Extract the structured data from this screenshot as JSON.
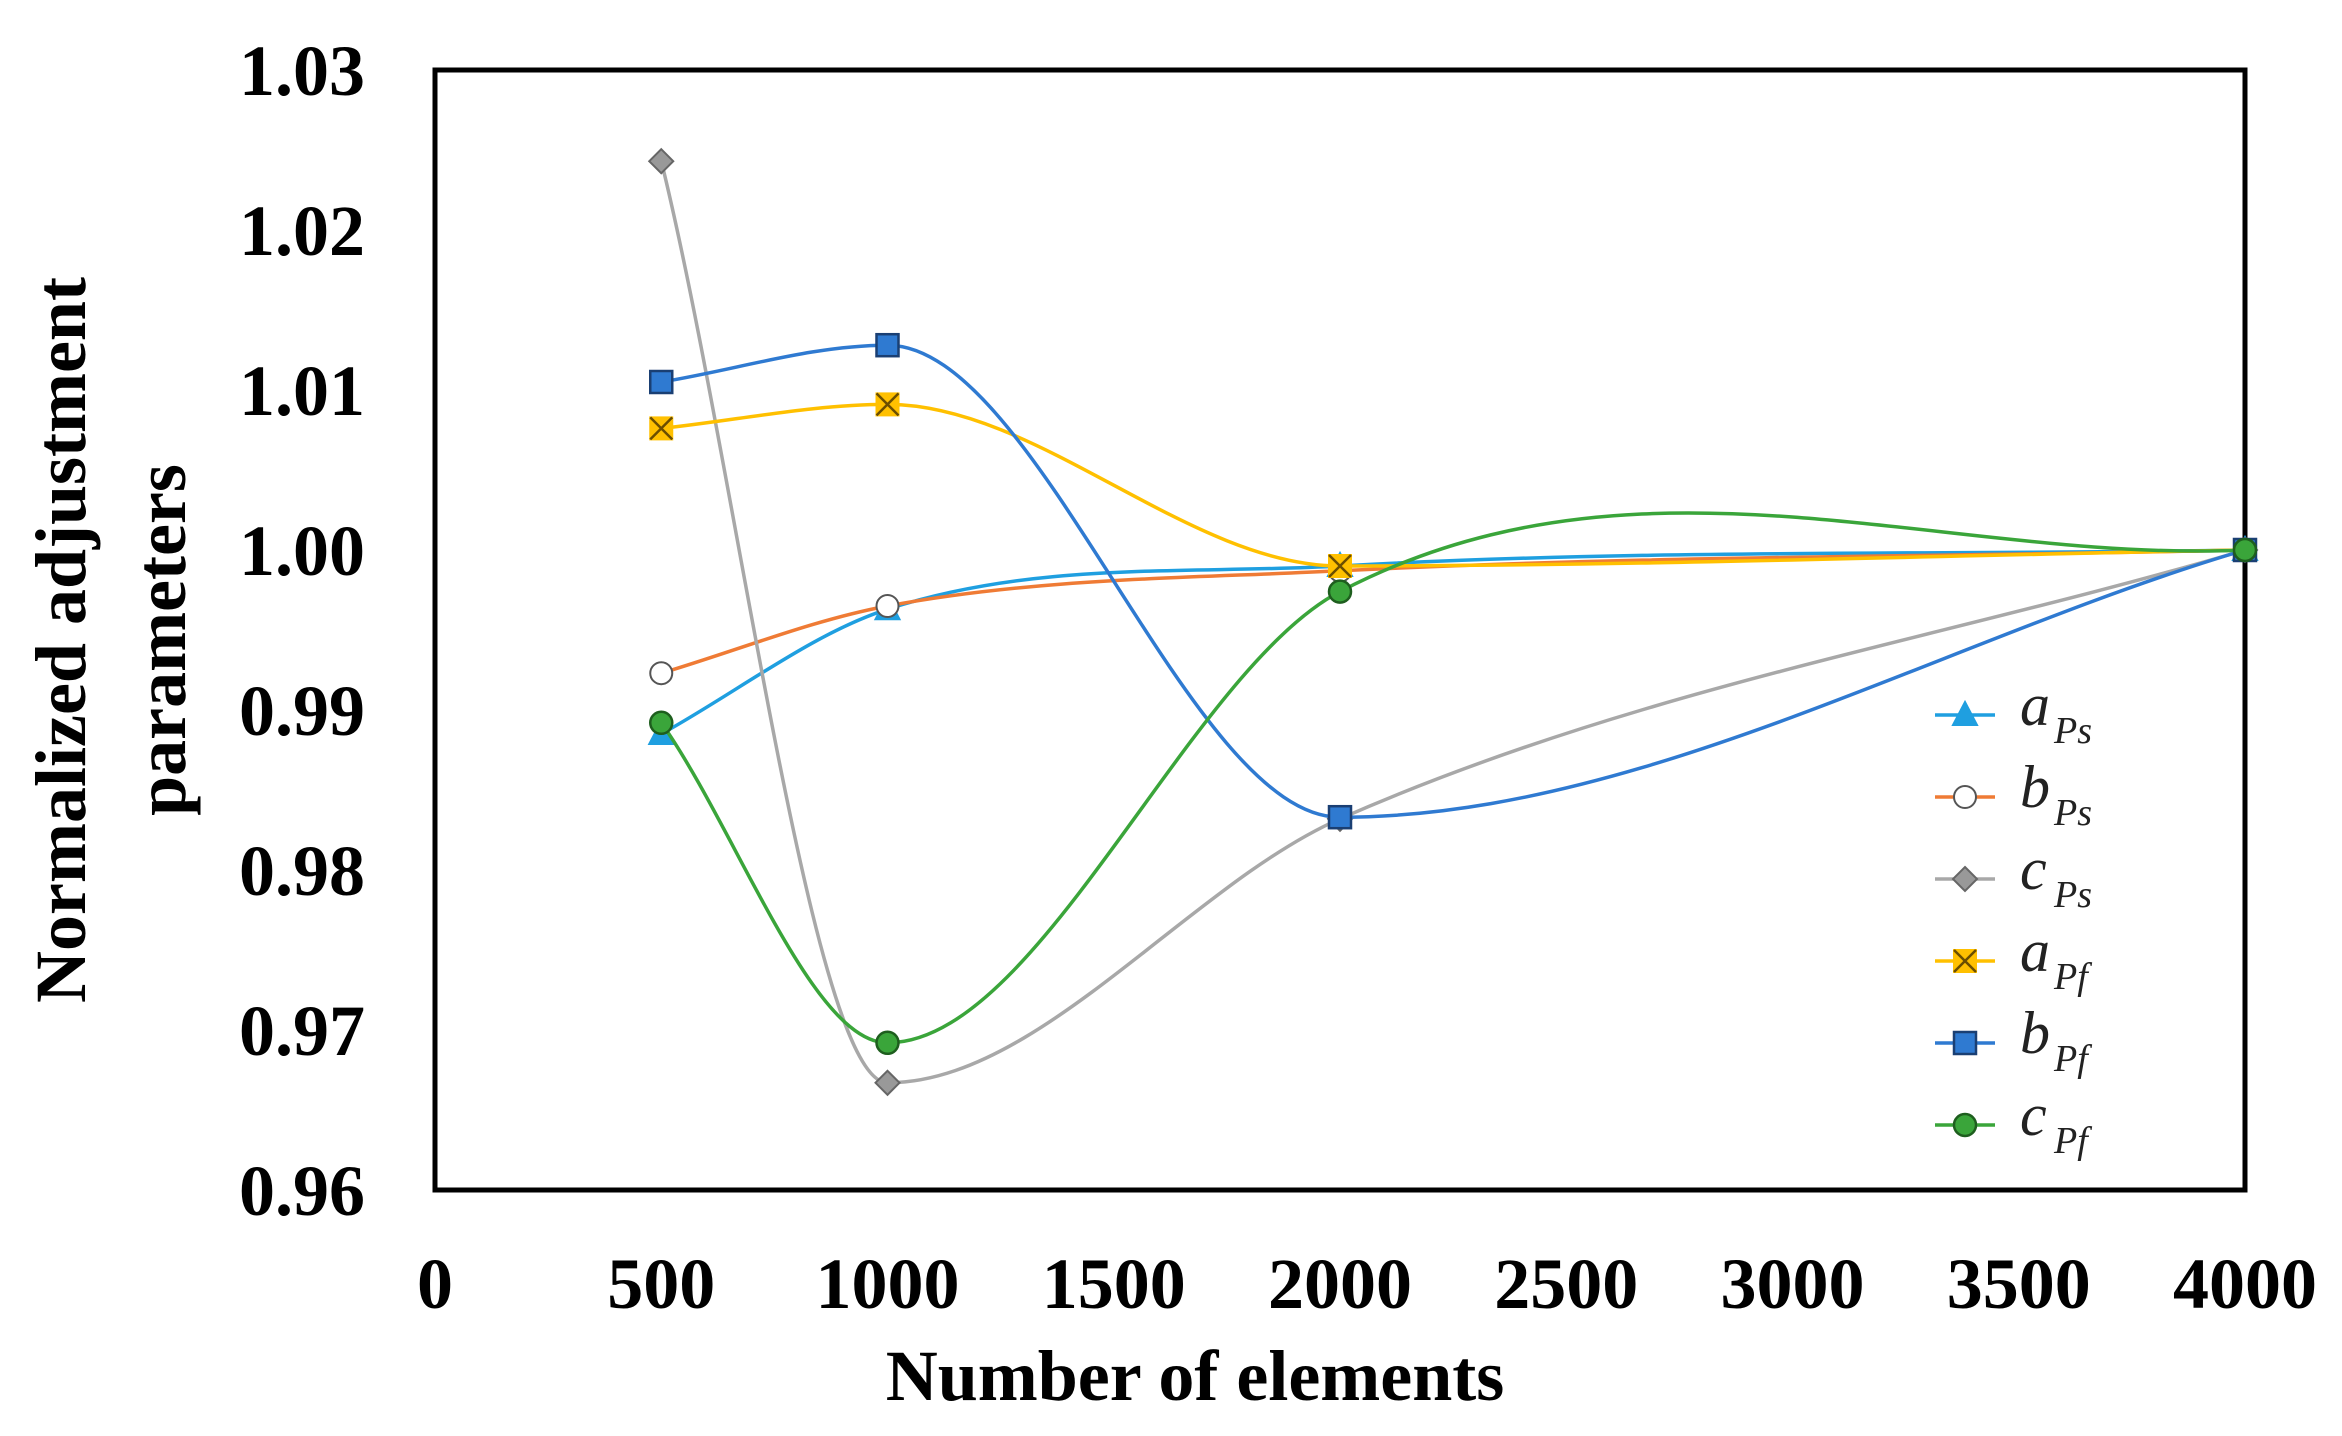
{
  "chart_data": {
    "type": "line",
    "title": "",
    "xlabel": "Number of elements",
    "ylabel_lines": [
      "Normalized adjustment",
      "parameters"
    ],
    "xlim": [
      0,
      4000
    ],
    "ylim": [
      0.96,
      1.03
    ],
    "xticks": [
      0,
      500,
      1000,
      1500,
      2000,
      2500,
      3000,
      3500,
      4000
    ],
    "yticks": [
      0.96,
      0.97,
      0.98,
      0.99,
      1.0,
      1.01,
      1.02,
      1.03
    ],
    "ytick_labels": [
      "0.96",
      "0.97",
      "0.98",
      "0.99",
      "1.00",
      "1.01",
      "1.02",
      "1.03"
    ],
    "grid": false,
    "legend_position": "right",
    "x": [
      500,
      1000,
      2000,
      4000
    ],
    "series": [
      {
        "name": "aPs",
        "base": "a",
        "sub": "Ps",
        "marker": "triangle",
        "color": "#1f9fe0",
        "fill": "#1f9fe0",
        "values": [
          0.9885,
          0.9963,
          0.999,
          1.0
        ]
      },
      {
        "name": "bPs",
        "base": "b",
        "sub": "Ps",
        "marker": "circle-open",
        "color": "#ef7b35",
        "fill": "#ffffff",
        "values": [
          0.9923,
          0.9965,
          0.9987,
          1.0
        ]
      },
      {
        "name": "cPs",
        "base": "c",
        "sub": "Ps",
        "marker": "diamond",
        "color": "#a8a8a8",
        "fill": "#999999",
        "values": [
          1.0243,
          0.9667,
          0.9832,
          1.0
        ]
      },
      {
        "name": "aPf",
        "base": "a",
        "sub": "Pf",
        "marker": "x-square",
        "color": "#ffc000",
        "fill": "#ffc000",
        "values": [
          1.0076,
          1.0091,
          0.999,
          1.0
        ]
      },
      {
        "name": "bPf",
        "base": "b",
        "sub": "Pf",
        "marker": "square",
        "color": "#2f7ad1",
        "fill": "#2f7ad1",
        "values": [
          1.0105,
          1.0128,
          0.9833,
          1.0
        ]
      },
      {
        "name": "cPf",
        "base": "c",
        "sub": "Pf",
        "marker": "circle",
        "color": "#3aa53a",
        "fill": "#3aa53a",
        "values": [
          0.9892,
          0.9692,
          0.9974,
          1.0
        ]
      }
    ]
  }
}
